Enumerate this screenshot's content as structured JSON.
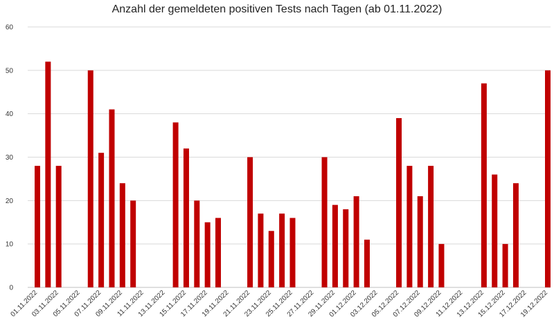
{
  "chart_data": {
    "type": "bar",
    "title": "Anzahl der gemeldeten positiven Tests nach Tagen (ab 01.11.2022)",
    "xlabel": "",
    "ylabel": "",
    "ylim": [
      0,
      60
    ],
    "yticks": [
      0,
      10,
      20,
      30,
      40,
      50,
      60
    ],
    "grid": true,
    "bar_color": "#c00000",
    "categories": [
      "01.11.2022",
      "02.11.2022",
      "03.11.2022",
      "04.11.2022",
      "05.11.2022",
      "06.11.2022",
      "07.11.2022",
      "08.11.2022",
      "09.11.2022",
      "10.11.2022",
      "11.11.2022",
      "12.11.2022",
      "13.11.2022",
      "14.11.2022",
      "15.11.2022",
      "16.11.2022",
      "17.11.2022",
      "18.11.2022",
      "19.11.2022",
      "20.11.2022",
      "21.11.2022",
      "22.11.2022",
      "23.11.2022",
      "24.11.2022",
      "25.11.2022",
      "26.11.2022",
      "27.11.2022",
      "28.11.2022",
      "29.11.2022",
      "30.11.2022",
      "01.12.2022",
      "02.12.2022",
      "03.12.2022",
      "04.12.2022",
      "05.12.2022",
      "06.12.2022",
      "07.12.2022",
      "08.12.2022",
      "09.12.2022",
      "10.12.2022",
      "11.12.2022",
      "12.12.2022",
      "13.12.2022",
      "14.12.2022",
      "15.12.2022",
      "16.12.2022",
      "17.12.2022",
      "18.12.2022",
      "19.12.2022"
    ],
    "values": [
      28,
      52,
      28,
      0,
      0,
      50,
      31,
      41,
      24,
      20,
      0,
      0,
      0,
      38,
      32,
      20,
      15,
      16,
      0,
      0,
      30,
      17,
      13,
      17,
      16,
      0,
      0,
      30,
      19,
      18,
      21,
      11,
      0,
      0,
      39,
      28,
      21,
      28,
      10,
      0,
      0,
      0,
      47,
      26,
      10,
      24,
      0,
      0,
      50
    ],
    "tick_labels": [
      "01.11.2022",
      "03.11.2022",
      "05.11.2022",
      "07.11.2022",
      "09.11.2022",
      "11.11.2022",
      "13.11.2022",
      "15.11.2022",
      "17.11.2022",
      "19.11.2022",
      "21.11.2022",
      "23.11.2022",
      "25.11.2022",
      "27.11.2022",
      "29.11.2022",
      "01.12.2022",
      "03.12.2022",
      "05.12.2022",
      "07.12.2022",
      "09.12.2022",
      "11.12.2022",
      "13.12.2022",
      "15.12.2022",
      "17.12.2022",
      "19.12.2022"
    ]
  }
}
